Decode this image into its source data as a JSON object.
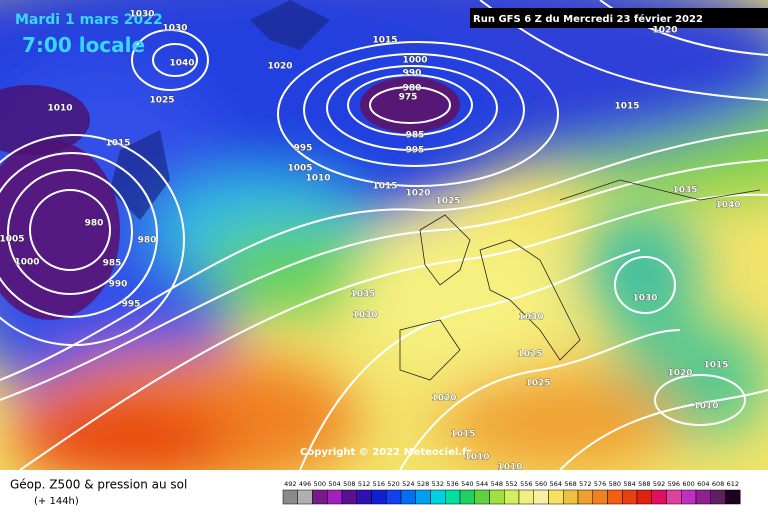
{
  "header": {
    "date": "Mardi 1 mars 2022",
    "time": "7:00 locale",
    "run": "Run GFS 6 Z du Mercredi 23 février 2022"
  },
  "copyright": "Copyright © 2022 Meteociel.fr",
  "footer": {
    "title": "Géop. Z500 & pression au sol",
    "lead": "(+ 144h)"
  },
  "isobar_labels": [
    1030,
    1030,
    1040,
    1025,
    1020,
    1015,
    1000,
    990,
    980,
    975,
    985,
    995,
    995,
    1005,
    1010,
    1015,
    1020,
    1025,
    1010,
    1015,
    980,
    980,
    1005,
    1000,
    985,
    990,
    995,
    1035,
    1030,
    1030,
    1025,
    1025,
    1020,
    1015,
    1010,
    1010,
    1015,
    1035,
    1040,
    1030,
    1020,
    1015,
    1010,
    1020
  ],
  "scale": {
    "labels": [
      492,
      496,
      500,
      504,
      508,
      512,
      516,
      520,
      524,
      528,
      532,
      536,
      540,
      544,
      548,
      552,
      556,
      560,
      564,
      568,
      572,
      576,
      580,
      584,
      588,
      592,
      596,
      600,
      604,
      608,
      612
    ],
    "colors": [
      "#8a8a8a",
      "#b0b0b0",
      "#7a1a8a",
      "#a020c0",
      "#5a1090",
      "#3010b0",
      "#1020d0",
      "#1040f0",
      "#0070f0",
      "#00a0f0",
      "#00d0e0",
      "#00e0a0",
      "#20d060",
      "#60d040",
      "#a0e040",
      "#d0f060",
      "#f0f080",
      "#f8f0a0",
      "#f8e060",
      "#f0c040",
      "#f0a030",
      "#f08020",
      "#f06010",
      "#e84010",
      "#e02010",
      "#e01060",
      "#e040a0",
      "#c030c0",
      "#902090",
      "#602060",
      "#200020"
    ]
  }
}
